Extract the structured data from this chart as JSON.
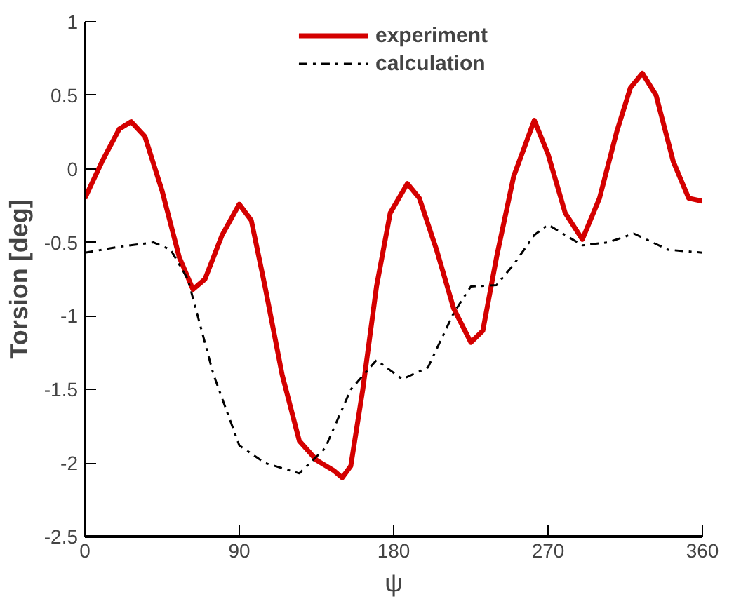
{
  "chart_data": {
    "type": "line",
    "xlabel": "ψ",
    "ylabel": "Torsion [deg]",
    "xlim": [
      0,
      360
    ],
    "ylim": [
      -2.5,
      1
    ],
    "xticks": [
      0,
      90,
      180,
      270,
      360
    ],
    "yticks": [
      -2.5,
      -2,
      -1.5,
      -1,
      -0.5,
      0,
      0.5,
      1
    ],
    "grid": false,
    "legend": "top",
    "marker": "none",
    "series": [
      {
        "name": "experiment",
        "color": "#d40000",
        "line_style": "solid",
        "x": [
          0,
          10,
          20,
          27,
          35,
          45,
          55,
          63,
          70,
          80,
          90,
          97,
          105,
          115,
          125,
          135,
          145,
          150,
          155,
          162,
          170,
          178,
          188,
          195,
          205,
          215,
          225,
          232,
          240,
          250,
          262,
          270,
          280,
          290,
          300,
          310,
          318,
          325,
          333,
          343,
          352,
          360
        ],
        "values": [
          -0.2,
          0.05,
          0.27,
          0.32,
          0.22,
          -0.15,
          -0.6,
          -0.82,
          -0.75,
          -0.45,
          -0.24,
          -0.35,
          -0.8,
          -1.4,
          -1.85,
          -1.98,
          -2.05,
          -2.1,
          -2.02,
          -1.5,
          -0.8,
          -0.3,
          -0.1,
          -0.2,
          -0.55,
          -0.95,
          -1.18,
          -1.1,
          -0.6,
          -0.05,
          0.33,
          0.1,
          -0.3,
          -0.48,
          -0.2,
          0.25,
          0.55,
          0.65,
          0.5,
          0.05,
          -0.2,
          -0.22
        ]
      },
      {
        "name": "calculation",
        "color": "#000000",
        "line_style": "dashdot",
        "x": [
          0,
          20,
          40,
          50,
          60,
          75,
          90,
          105,
          125,
          140,
          155,
          170,
          185,
          200,
          215,
          225,
          240,
          250,
          262,
          270,
          290,
          305,
          320,
          340,
          360
        ],
        "values": [
          -0.57,
          -0.53,
          -0.5,
          -0.55,
          -0.75,
          -1.4,
          -1.88,
          -2.0,
          -2.07,
          -1.9,
          -1.5,
          -1.3,
          -1.43,
          -1.35,
          -0.98,
          -0.8,
          -0.79,
          -0.65,
          -0.45,
          -0.38,
          -0.52,
          -0.5,
          -0.44,
          -0.55,
          -0.57
        ]
      }
    ]
  }
}
